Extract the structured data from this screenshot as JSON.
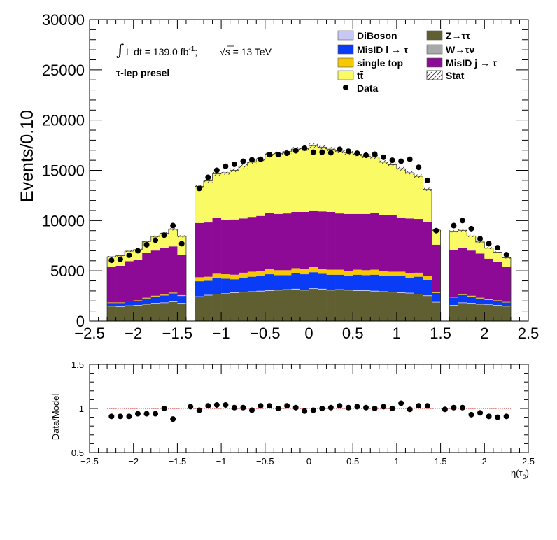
{
  "chart_data": [
    {
      "type": "bar",
      "subtype": "stacked-histogram",
      "ylabel": "Events/0.10",
      "xlim": [
        -2.5,
        2.5
      ],
      "ylim": [
        0,
        30000
      ],
      "xticks": [
        "−2.5",
        "−2",
        "−1.5",
        "−1",
        "−0.5",
        "0",
        "0.5",
        "1",
        "1.5",
        "2",
        "2.5"
      ],
      "yticks": [
        "0",
        "5000",
        "10000",
        "15000",
        "20000",
        "25000",
        "30000"
      ],
      "lumi_text_int": "∫",
      "lumi_text_main": "L dt = 139.0 fb",
      "lumi_text_sup": "-1",
      "lumi_text_sep": ";",
      "lumi_text_sqrt": "√",
      "lumi_text_s": "s",
      "lumi_text_energy": " = 13 TeV",
      "region_label": "τ-lep presel",
      "legend_placement": "top-right",
      "legend": [
        {
          "key": "diboson",
          "label": "DiBoson"
        },
        {
          "key": "misid_l",
          "label": "MisID l → τ"
        },
        {
          "key": "single_top",
          "label": "single top"
        },
        {
          "key": "ttbar",
          "label": "tt̄"
        },
        {
          "key": "data",
          "label": "Data"
        },
        {
          "key": "ztautau",
          "label": "Z→ττ"
        },
        {
          "key": "wtaunu",
          "label": "W→τν"
        },
        {
          "key": "misid_j",
          "label": "MisID j → τ"
        },
        {
          "key": "stat",
          "label": "Stat"
        }
      ],
      "colors": {
        "diboson": "#c8c8f5",
        "ztautau": "#5f5f32",
        "misid_l": "#0a3cf5",
        "wtaunu": "#a8a8a8",
        "single_top": "#f5c800",
        "misid_j": "#8c0a96",
        "ttbar": "#fafa64",
        "data": "#000000"
      },
      "bin_edges": [
        -2.3,
        -2.2,
        -2.1,
        -2.0,
        -1.9,
        -1.8,
        -1.7,
        -1.6,
        -1.5,
        -1.4,
        -1.3,
        -1.2,
        -1.1,
        -1.0,
        -0.9,
        -0.8,
        -0.7,
        -0.6,
        -0.5,
        -0.4,
        -0.3,
        -0.2,
        -0.1,
        0.0,
        0.1,
        0.2,
        0.3,
        0.4,
        0.5,
        0.6,
        0.7,
        0.8,
        0.9,
        1.0,
        1.1,
        1.2,
        1.3,
        1.4,
        1.5,
        1.6,
        1.7,
        1.8,
        1.9,
        2.0,
        2.1,
        2.2,
        2.3
      ],
      "series": [
        {
          "key": "ztautau",
          "name": "Z→ττ",
          "values": [
            1450,
            1400,
            1500,
            1550,
            1650,
            1750,
            1800,
            1900,
            1750,
            0,
            2400,
            2550,
            2650,
            2700,
            2800,
            2850,
            2900,
            2950,
            3000,
            3050,
            3100,
            3150,
            3050,
            3200,
            3150,
            3050,
            3100,
            3050,
            3000,
            3000,
            2950,
            2900,
            2850,
            2800,
            2750,
            2650,
            2500,
            1850,
            0,
            1550,
            1800,
            1750,
            1650,
            1600,
            1550,
            1450
          ]
        },
        {
          "key": "wtaunu",
          "name": "W→τν",
          "values": [
            0,
            0,
            0,
            0,
            0,
            0,
            0,
            0,
            0,
            0,
            0,
            0,
            0,
            0,
            0,
            0,
            0,
            0,
            0,
            0,
            0,
            0,
            0,
            0,
            0,
            0,
            0,
            0,
            0,
            0,
            0,
            0,
            0,
            0,
            0,
            0,
            0,
            0,
            0,
            0,
            0,
            0,
            0,
            0,
            0,
            0
          ]
        },
        {
          "key": "diboson",
          "name": "DiBoson",
          "values": [
            50,
            50,
            50,
            50,
            50,
            50,
            50,
            50,
            50,
            0,
            60,
            60,
            60,
            60,
            60,
            60,
            60,
            60,
            60,
            60,
            60,
            60,
            60,
            60,
            60,
            60,
            60,
            60,
            60,
            60,
            60,
            60,
            60,
            60,
            60,
            60,
            60,
            50,
            0,
            50,
            50,
            50,
            50,
            50,
            50,
            50
          ]
        },
        {
          "key": "misid_l",
          "name": "MisID l → τ",
          "values": [
            300,
            350,
            400,
            400,
            550,
            650,
            700,
            800,
            700,
            0,
            1500,
            1400,
            1550,
            1450,
            1300,
            1400,
            1450,
            1450,
            1600,
            1450,
            1400,
            1550,
            1550,
            1600,
            1500,
            1500,
            1450,
            1400,
            1550,
            1500,
            1600,
            1550,
            1550,
            1600,
            1500,
            1700,
            1500,
            900,
            0,
            750,
            750,
            650,
            550,
            450,
            400,
            350
          ]
        },
        {
          "key": "single_top",
          "name": "single top",
          "values": [
            50,
            50,
            60,
            60,
            70,
            70,
            80,
            80,
            80,
            0,
            400,
            400,
            450,
            450,
            450,
            500,
            500,
            500,
            500,
            500,
            500,
            500,
            500,
            550,
            500,
            500,
            500,
            500,
            500,
            500,
            500,
            500,
            450,
            450,
            450,
            400,
            400,
            100,
            0,
            80,
            80,
            70,
            70,
            60,
            60,
            50
          ]
        },
        {
          "key": "misid_j",
          "name": "MisID j → τ",
          "values": [
            3550,
            3650,
            3950,
            4000,
            4450,
            4500,
            4650,
            4600,
            4000,
            0,
            5400,
            5400,
            5550,
            5400,
            5500,
            5400,
            5450,
            5500,
            5600,
            5600,
            5650,
            5600,
            5700,
            5600,
            5700,
            5750,
            5600,
            5650,
            5550,
            5600,
            5650,
            5500,
            5600,
            5400,
            5450,
            5350,
            5400,
            4700,
            0,
            4600,
            4600,
            4500,
            4400,
            4050,
            3800,
            3500
          ]
        },
        {
          "key": "ttbar",
          "name": "tt̄",
          "values": [
            1000,
            1000,
            1000,
            1050,
            1150,
            1400,
            1450,
            1700,
            1850,
            0,
            3650,
            4150,
            4400,
            4700,
            4900,
            5200,
            5450,
            5650,
            5850,
            6000,
            6150,
            6250,
            6300,
            6450,
            6400,
            6250,
            6200,
            6100,
            5950,
            5750,
            5550,
            5300,
            5050,
            4850,
            4550,
            4250,
            3250,
            1450,
            0,
            1900,
            1750,
            1450,
            1150,
            1050,
            1000,
            900
          ]
        }
      ],
      "data": [
        6050,
        6150,
        6550,
        7000,
        7600,
        8050,
        8550,
        9500,
        7700,
        null,
        13200,
        14300,
        15000,
        15400,
        15600,
        15900,
        16050,
        16100,
        16550,
        16550,
        16700,
        16950,
        17200,
        16800,
        16800,
        16750,
        17100,
        16900,
        16700,
        16500,
        16600,
        16300,
        16000,
        15900,
        16100,
        15300,
        14000,
        9000,
        null,
        9500,
        10000,
        9200,
        8200,
        7700,
        7300,
        6600
      ]
    },
    {
      "type": "scatter",
      "ylabel": "Data/Model",
      "xlabel_main": "η(τ",
      "xlabel_sub": "0",
      "xlabel_close": ")",
      "xlim": [
        -2.5,
        2.5
      ],
      "ylim": [
        0.5,
        1.5
      ],
      "xticks": [
        "−2.5",
        "−2",
        "−1.5",
        "−1",
        "−0.5",
        "0",
        "0.5",
        "1",
        "1.5",
        "2",
        "2.5"
      ],
      "yticks": [
        "0.5",
        "1",
        "1.5"
      ],
      "reference_line": 1,
      "x": [
        -2.25,
        -2.15,
        -2.05,
        -1.95,
        -1.85,
        -1.75,
        -1.65,
        -1.55,
        -1.35,
        -1.25,
        -1.15,
        -1.05,
        -0.95,
        -0.85,
        -0.75,
        -0.65,
        -0.55,
        -0.45,
        -0.35,
        -0.25,
        -0.15,
        -0.05,
        0.05,
        0.15,
        0.25,
        0.35,
        0.45,
        0.55,
        0.65,
        0.75,
        0.85,
        0.95,
        1.05,
        1.15,
        1.25,
        1.35,
        1.55,
        1.65,
        1.75,
        1.85,
        1.95,
        2.05,
        2.15,
        2.25
      ],
      "y": [
        0.91,
        0.91,
        0.91,
        0.94,
        0.94,
        0.94,
        1.0,
        0.88,
        1.02,
        0.98,
        1.03,
        1.04,
        1.04,
        1.01,
        1.01,
        0.98,
        1.03,
        1.03,
        1.0,
        1.03,
        1.01,
        0.97,
        0.98,
        1.0,
        1.01,
        1.03,
        1.01,
        1.02,
        1.01,
        1.0,
        1.02,
        1.0,
        1.06,
        0.99,
        1.03,
        1.03,
        0.99,
        1.01,
        1.01,
        0.93,
        0.95,
        0.91,
        0.9,
        0.91
      ]
    }
  ]
}
